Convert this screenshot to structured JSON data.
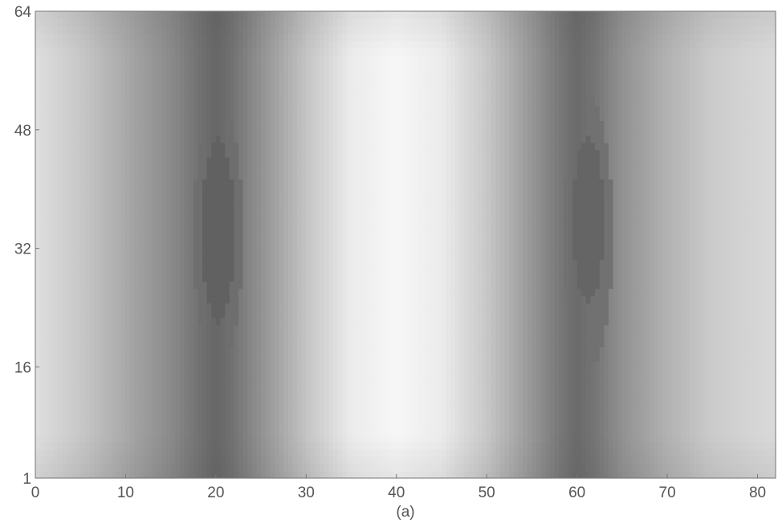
{
  "chart_data": {
    "type": "heatmap",
    "title": "",
    "caption": "(a)",
    "xlabel": "",
    "ylabel": "",
    "xlim": [
      0,
      82
    ],
    "ylim": [
      1,
      64
    ],
    "x_ticks": [
      0,
      10,
      20,
      30,
      40,
      50,
      60,
      70,
      80
    ],
    "y_ticks": [
      1,
      16,
      32,
      48,
      64
    ],
    "colormap": "grayscale (dark = low, white = high)",
    "grid": false,
    "legend": "none",
    "x_profile": {
      "x": [
        0,
        5,
        10,
        15,
        18,
        20,
        22,
        25,
        30,
        35,
        40,
        45,
        50,
        55,
        58,
        60,
        62,
        65,
        70,
        75,
        80,
        82
      ],
      "intensity": [
        0.85,
        0.72,
        0.55,
        0.38,
        0.25,
        0.18,
        0.25,
        0.42,
        0.7,
        0.92,
        0.98,
        0.92,
        0.72,
        0.45,
        0.28,
        0.2,
        0.26,
        0.42,
        0.6,
        0.74,
        0.8,
        0.82
      ]
    },
    "dark_regions": [
      {
        "x_center": 20,
        "x_range": [
          17.5,
          23
        ],
        "y_range": [
          16,
          52
        ],
        "intensity": 0.22
      },
      {
        "x_center": 61,
        "x_range": [
          58.5,
          64
        ],
        "y_range": [
          16,
          52
        ],
        "intensity": 0.24
      },
      {
        "x_center": 20,
        "x_range": [
          18.5,
          22
        ],
        "y_range": [
          22,
          47
        ],
        "intensity": 0.15
      },
      {
        "x_center": 61,
        "x_range": [
          59.5,
          63
        ],
        "y_range": [
          25,
          47
        ],
        "intensity": 0.17
      }
    ],
    "background_color": "#ffffff",
    "text_color": "#555555"
  }
}
